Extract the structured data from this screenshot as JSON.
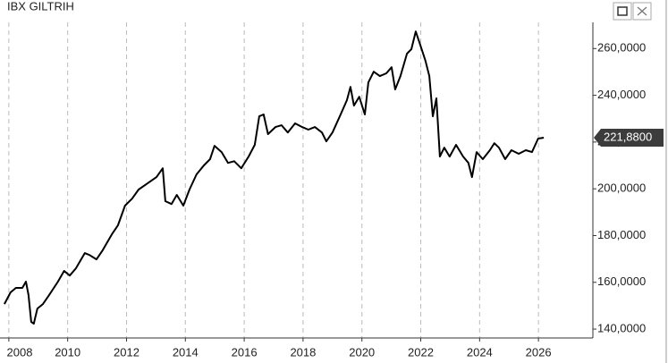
{
  "chart_data": {
    "type": "line",
    "title": "IBX GILTRIH",
    "x": [
      2007.85,
      2008.06,
      2008.24,
      2008.46,
      2008.58,
      2008.67,
      2008.76,
      2008.85,
      2008.97,
      2009.16,
      2009.37,
      2009.67,
      2009.88,
      2010.07,
      2010.28,
      2010.58,
      2010.74,
      2010.98,
      2011.19,
      2011.5,
      2011.71,
      2011.95,
      2012.19,
      2012.41,
      2012.71,
      2013.02,
      2013.23,
      2013.32,
      2013.53,
      2013.71,
      2013.93,
      2014.14,
      2014.38,
      2014.63,
      2014.84,
      2014.99,
      2015.23,
      2015.45,
      2015.66,
      2015.9,
      2016.15,
      2016.36,
      2016.51,
      2016.66,
      2016.81,
      2017.06,
      2017.27,
      2017.48,
      2017.73,
      2017.97,
      2018.18,
      2018.4,
      2018.64,
      2018.79,
      2019.0,
      2019.25,
      2019.49,
      2019.61,
      2019.73,
      2019.91,
      2020.1,
      2020.22,
      2020.4,
      2020.61,
      2020.83,
      2021.01,
      2021.13,
      2021.31,
      2021.53,
      2021.68,
      2021.83,
      2021.98,
      2022.16,
      2022.29,
      2022.41,
      2022.53,
      2022.65,
      2022.8,
      2022.98,
      2023.2,
      2023.44,
      2023.62,
      2023.74,
      2023.9,
      2024.11,
      2024.35,
      2024.5,
      2024.66,
      2024.87,
      2025.08,
      2025.33,
      2025.57,
      2025.78,
      2025.99,
      2026.18
    ],
    "series": [
      {
        "name": "IBX GILTRIH",
        "color": "#000000",
        "values": [
          150.7,
          155.7,
          157.6,
          157.6,
          160.3,
          154.5,
          143.1,
          142.3,
          148.8,
          150.7,
          154.5,
          160.3,
          164.9,
          162.9,
          166.0,
          172.5,
          171.7,
          169.8,
          173.7,
          180.5,
          184.4,
          192.8,
          195.8,
          199.7,
          202.3,
          205.0,
          208.8,
          194.7,
          193.5,
          197.4,
          192.8,
          199.7,
          206.2,
          210.0,
          212.7,
          218.4,
          215.7,
          211.1,
          211.8,
          208.8,
          213.8,
          218.8,
          231.0,
          231.8,
          223.4,
          226.4,
          227.2,
          224.1,
          228.0,
          226.4,
          225.3,
          226.4,
          224.1,
          220.3,
          224.1,
          231.0,
          237.9,
          243.6,
          235.6,
          239.4,
          231.8,
          245.5,
          250.1,
          248.2,
          249.4,
          252.0,
          242.5,
          248.2,
          257.8,
          259.7,
          267.3,
          261.6,
          254.7,
          248.2,
          231.0,
          238.7,
          213.8,
          217.6,
          213.8,
          218.8,
          213.8,
          211.1,
          205.0,
          215.7,
          212.7,
          216.5,
          219.5,
          217.6,
          212.7,
          216.5,
          215.0,
          216.5,
          215.7,
          221.5,
          221.88
        ]
      }
    ],
    "current_value": {
      "value": 221.88,
      "label": "221,8800"
    },
    "xlim": [
      2007.7,
      2027.85
    ],
    "ylim": [
      136.2,
      271.2
    ],
    "xticks": [
      2008,
      2010,
      2012,
      2014,
      2016,
      2018,
      2020,
      2022,
      2024,
      2026
    ],
    "yticks": [
      {
        "value": 140,
        "label": "140,0000"
      },
      {
        "value": 160,
        "label": "160,0000"
      },
      {
        "value": 180,
        "label": "180,0000"
      },
      {
        "value": 200,
        "label": "200,0000"
      },
      {
        "value": 220,
        "label": "220,0000"
      },
      {
        "value": 240,
        "label": "240,0000"
      },
      {
        "value": 260,
        "label": "260,0000"
      }
    ],
    "grid": true
  }
}
